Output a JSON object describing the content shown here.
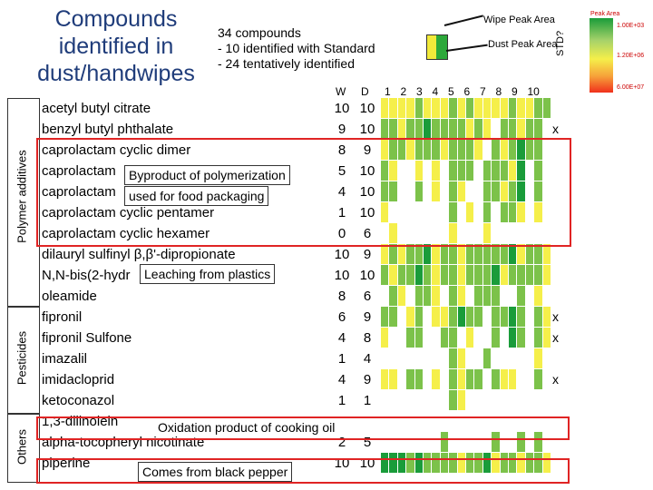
{
  "title": "Compounds identified in dust/handwipes",
  "note": {
    "line1": "34 compounds",
    "line2": "-   10 identified with Standard",
    "line3": "-   24 tentatively identified"
  },
  "legend": {
    "wipe": "Wipe Peak Area",
    "dust": "Dust Peak Area",
    "colorbar_title": "Peak Area",
    "colorbar_labels": [
      "1.00E+03",
      "1.20E+06",
      "6.00E+07"
    ],
    "colors": [
      "#1a9c3a",
      "#f5ef4a",
      "#f0301c"
    ]
  },
  "headers": {
    "w": "W",
    "d": "D",
    "cols": [
      "1",
      "2",
      "3",
      "4",
      "5",
      "6",
      "7",
      "8",
      "9",
      "10"
    ],
    "std": "STD?"
  },
  "sections": {
    "polymer": "Polymer additives",
    "pesticides": "Pesticides",
    "others": "Others"
  },
  "rows": [
    {
      "name": "acetyl butyl citrate",
      "w": "10",
      "d": "10",
      "std": ""
    },
    {
      "name": "benzyl butyl phthalate",
      "w": "9",
      "d": "10",
      "std": "x"
    },
    {
      "name": "caprolactam cyclic dimer",
      "w": "8",
      "d": "9",
      "std": ""
    },
    {
      "name": "caprolactam",
      "w": "5",
      "d": "10",
      "std": ""
    },
    {
      "name": "caprolactam",
      "w": "4",
      "d": "10",
      "std": ""
    },
    {
      "name": "caprolactam cyclic pentamer",
      "w": "1",
      "d": "10",
      "std": ""
    },
    {
      "name": "caprolactam cyclic hexamer",
      "w": "0",
      "d": "6",
      "std": ""
    },
    {
      "name": "dilauryl sulfinyl β,β'-dipropionate",
      "w": "10",
      "d": "9",
      "std": ""
    },
    {
      "name": "N,N-bis(2-hydr",
      "w": "10",
      "d": "10",
      "std": ""
    },
    {
      "name": "oleamide",
      "w": "8",
      "d": "6",
      "std": ""
    },
    {
      "name": "fipronil",
      "w": "6",
      "d": "9",
      "std": "x"
    },
    {
      "name": "fipronil Sulfone",
      "w": "4",
      "d": "8",
      "std": "x"
    },
    {
      "name": "imazalil",
      "w": "1",
      "d": "4",
      "std": ""
    },
    {
      "name": "imidacloprid",
      "w": "4",
      "d": "9",
      "std": "x"
    },
    {
      "name": "ketoconazol",
      "w": "1",
      "d": "1",
      "std": ""
    },
    {
      "name": "1,3-dilinolein",
      "w": "",
      "d": "",
      "std": ""
    },
    {
      "name": "alpha-tocopheryl nicotinate",
      "w": "2",
      "d": "5",
      "std": ""
    },
    {
      "name": "piperine",
      "w": "10",
      "d": "10",
      "std": ""
    }
  ],
  "annotations": {
    "polymerization": "Byproduct of polymerization",
    "packaging": "used for food packaging",
    "leaching": "Leaching from plastics",
    "cooking": "Oxidation product of cooking oil",
    "pepper": "Comes from black pepper"
  },
  "heatmap_levels": [
    [
      1,
      1,
      1,
      1,
      2,
      1,
      1,
      1,
      2,
      1,
      2,
      1,
      1,
      1,
      1,
      2,
      1,
      1,
      2,
      2
    ],
    [
      2,
      2,
      1,
      2,
      2,
      3,
      2,
      2,
      2,
      2,
      1,
      2,
      1,
      0,
      2,
      2,
      1,
      2,
      2,
      0
    ],
    [
      1,
      2,
      2,
      1,
      2,
      2,
      2,
      1,
      2,
      2,
      2,
      1,
      0,
      2,
      1,
      2,
      3,
      2,
      2,
      0
    ],
    [
      2,
      1,
      0,
      0,
      1,
      0,
      1,
      0,
      2,
      2,
      2,
      0,
      2,
      2,
      2,
      1,
      3,
      0,
      2,
      0
    ],
    [
      2,
      2,
      0,
      0,
      2,
      0,
      1,
      0,
      2,
      1,
      0,
      0,
      2,
      2,
      1,
      2,
      3,
      0,
      2,
      0
    ],
    [
      1,
      0,
      0,
      0,
      0,
      0,
      0,
      0,
      2,
      0,
      1,
      0,
      2,
      0,
      2,
      2,
      1,
      0,
      1,
      0
    ],
    [
      0,
      1,
      0,
      0,
      0,
      0,
      0,
      0,
      1,
      0,
      0,
      0,
      1,
      0,
      0,
      0,
      0,
      0,
      0,
      0
    ],
    [
      1,
      2,
      1,
      2,
      2,
      3,
      1,
      2,
      2,
      1,
      2,
      2,
      2,
      2,
      2,
      3,
      1,
      2,
      2,
      1
    ],
    [
      2,
      1,
      2,
      2,
      3,
      2,
      1,
      2,
      2,
      1,
      2,
      2,
      2,
      3,
      1,
      2,
      2,
      2,
      2,
      1
    ],
    [
      0,
      2,
      1,
      0,
      2,
      2,
      1,
      0,
      2,
      1,
      0,
      2,
      2,
      2,
      0,
      0,
      2,
      0,
      1,
      0
    ],
    [
      2,
      2,
      0,
      1,
      2,
      0,
      1,
      1,
      2,
      3,
      2,
      2,
      0,
      2,
      2,
      3,
      2,
      0,
      2,
      1
    ],
    [
      1,
      0,
      0,
      2,
      2,
      0,
      0,
      2,
      2,
      0,
      1,
      0,
      0,
      2,
      0,
      3,
      2,
      0,
      2,
      1
    ],
    [
      0,
      0,
      0,
      0,
      0,
      0,
      0,
      0,
      2,
      1,
      0,
      0,
      2,
      0,
      0,
      0,
      0,
      0,
      1,
      0
    ],
    [
      1,
      1,
      0,
      2,
      2,
      0,
      1,
      0,
      2,
      1,
      2,
      2,
      0,
      2,
      1,
      1,
      0,
      0,
      2,
      0
    ],
    [
      0,
      0,
      0,
      0,
      0,
      0,
      0,
      0,
      2,
      1,
      0,
      0,
      0,
      0,
      0,
      0,
      0,
      0,
      0,
      0
    ],
    [
      0,
      0,
      0,
      0,
      0,
      0,
      0,
      0,
      0,
      0,
      0,
      0,
      0,
      0,
      0,
      0,
      0,
      0,
      0,
      0
    ],
    [
      0,
      0,
      0,
      0,
      0,
      0,
      0,
      2,
      0,
      0,
      0,
      0,
      0,
      2,
      0,
      0,
      2,
      0,
      2,
      0
    ],
    [
      3,
      3,
      3,
      2,
      3,
      2,
      2,
      2,
      2,
      1,
      2,
      2,
      3,
      1,
      2,
      2,
      1,
      2,
      2,
      1
    ]
  ],
  "heatmap_palette": [
    "#ffffff",
    "#f5ef4a",
    "#7cc24a",
    "#1a9c3a"
  ]
}
